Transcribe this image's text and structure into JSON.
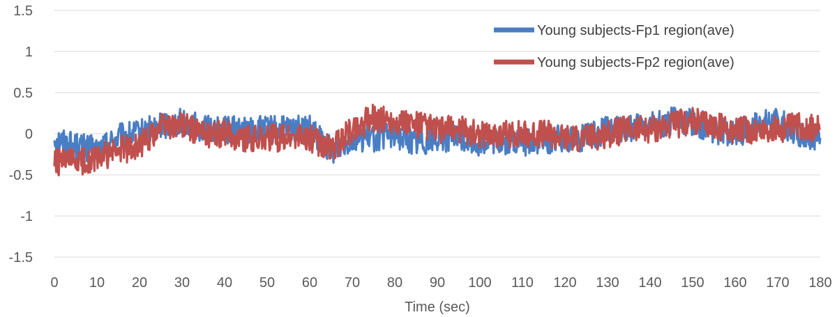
{
  "chart_data": {
    "type": "line",
    "title": "",
    "xlabel": "Time (sec)",
    "ylabel": "",
    "xlim": [
      0,
      180
    ],
    "ylim": [
      -1.5,
      1.5
    ],
    "x_ticks": [
      "0",
      "10",
      "20",
      "30",
      "40",
      "50",
      "60",
      "70",
      "80",
      "90",
      "100",
      "110",
      "120",
      "130",
      "140",
      "150",
      "160",
      "170",
      "180"
    ],
    "y_ticks": [
      "1.5",
      "1",
      "0.5",
      "0",
      "-0.5",
      "-1",
      "-1.5"
    ],
    "grid": "horizontal",
    "legend_position": "top-right",
    "x": [
      0,
      5,
      10,
      15,
      20,
      25,
      30,
      35,
      40,
      45,
      50,
      55,
      60,
      65,
      70,
      75,
      80,
      85,
      90,
      95,
      100,
      105,
      110,
      115,
      120,
      125,
      130,
      135,
      140,
      145,
      150,
      155,
      160,
      165,
      170,
      175,
      180
    ],
    "series": [
      {
        "name": "Young subjects-Fp1 region(ave)",
        "color": "#4a7ec4",
        "values": [
          -0.05,
          -0.15,
          -0.2,
          -0.05,
          0.0,
          0.1,
          0.15,
          0.05,
          0.05,
          0.05,
          0.05,
          0.05,
          0.05,
          -0.2,
          -0.05,
          -0.05,
          0.0,
          -0.1,
          -0.05,
          -0.05,
          -0.1,
          -0.1,
          -0.1,
          -0.1,
          -0.05,
          -0.05,
          0.05,
          0.05,
          0.1,
          0.15,
          0.15,
          0.05,
          0.0,
          0.1,
          0.15,
          0.0,
          -0.05
        ]
      },
      {
        "name": "Young subjects-Fp2 region(ave)",
        "color": "#c0504d",
        "values": [
          -0.35,
          -0.35,
          -0.3,
          -0.2,
          -0.15,
          0.1,
          0.1,
          0.0,
          0.0,
          -0.05,
          -0.05,
          -0.05,
          -0.05,
          -0.2,
          0.05,
          0.2,
          0.15,
          0.1,
          0.05,
          0.05,
          0.0,
          0.0,
          0.0,
          0.0,
          -0.05,
          -0.05,
          0.0,
          0.05,
          0.05,
          0.1,
          0.15,
          0.1,
          0.05,
          0.05,
          0.05,
          0.1,
          0.05
        ]
      }
    ]
  }
}
